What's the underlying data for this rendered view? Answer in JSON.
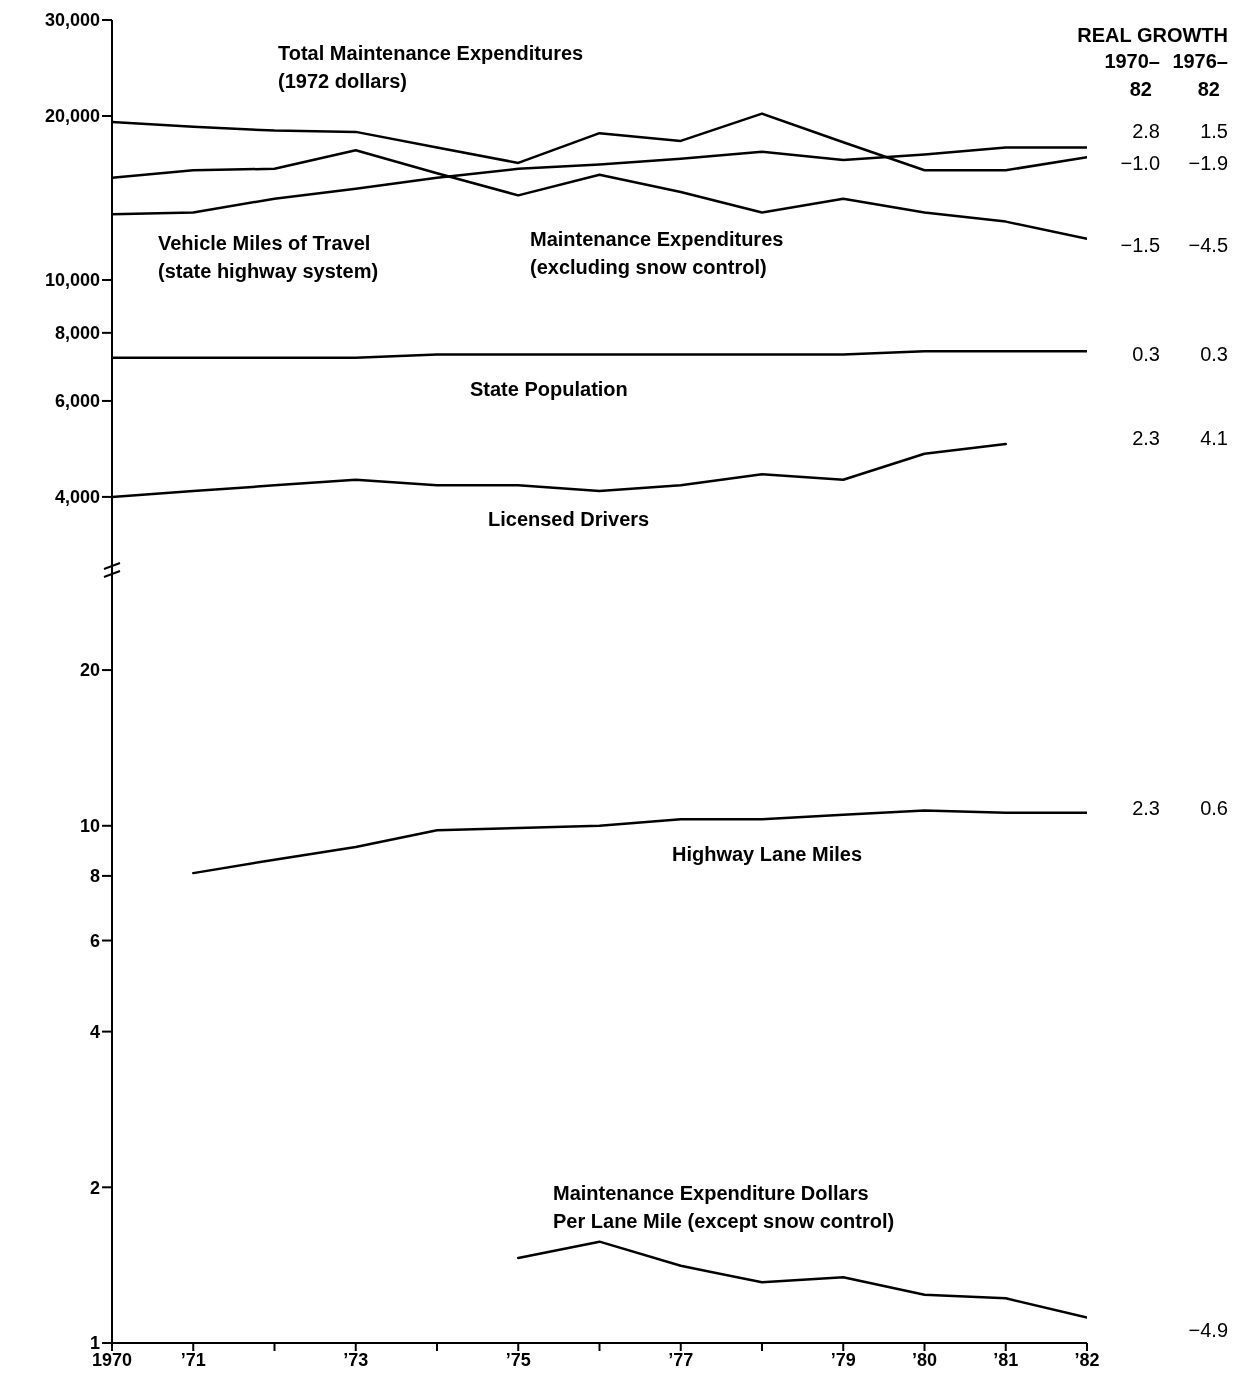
{
  "chart_data": [
    {
      "type": "line",
      "x": [
        1970,
        1971,
        1972,
        1973,
        1974,
        1975,
        1976,
        1977,
        1978,
        1979,
        1980,
        1981,
        1982
      ],
      "log": "y",
      "tick_labels": "y",
      "legend": false,
      "xlim": [
        1970,
        1982
      ],
      "ylim": [
        3000,
        30000
      ],
      "yticks": [
        {
          "value": 4000,
          "label": "4,000"
        },
        {
          "value": 6000,
          "label": "6,000"
        },
        {
          "value": 8000,
          "label": "8,000"
        },
        {
          "value": 10000,
          "label": "10,000"
        },
        {
          "value": 20000,
          "label": "20,000"
        },
        {
          "value": 30000,
          "label": "30,000"
        }
      ],
      "series": [
        {
          "name": "Total Maintenance Expenditures\n(1972 dollars)",
          "color": "#000000",
          "values": [
            19500,
            19100,
            18800,
            18700,
            17500,
            16400,
            18600,
            18000,
            20200,
            17900,
            15900,
            15900,
            16800
          ]
        },
        {
          "name": "Vehicle Miles of Travel\n(state highway system)",
          "color": "#000000",
          "values": [
            13200,
            13300,
            14100,
            14700,
            15400,
            16000,
            16300,
            16700,
            17200,
            16600,
            17000,
            17500,
            17500
          ]
        },
        {
          "name": "Maintenance Expenditures\n(excluding snow control)",
          "color": "#000000",
          "values": [
            15400,
            15900,
            16000,
            17300,
            15700,
            14300,
            15600,
            14500,
            13300,
            14100,
            13300,
            12800,
            11900
          ]
        },
        {
          "name": "State Population",
          "color": "#000000",
          "values": [
            7200,
            7200,
            7200,
            7200,
            7300,
            7300,
            7300,
            7300,
            7300,
            7300,
            7400,
            7400,
            7400
          ]
        },
        {
          "name": "Licensed Drivers",
          "color": "#000000",
          "values": [
            4000,
            4100,
            4200,
            4300,
            4200,
            4200,
            4100,
            4200,
            4400,
            4300,
            4800,
            5000,
            null
          ]
        }
      ],
      "annotations": [
        "REAL GROWTH",
        "1970–82",
        "1976–82",
        "2.8",
        "1.5",
        "−1.0",
        "−1.9",
        "−1.5",
        "−4.5",
        "0.3",
        "0.3",
        "2.3",
        "4.1"
      ]
    },
    {
      "type": "line",
      "x": [
        1971,
        1972,
        1973,
        1974,
        1975,
        1976,
        1977,
        1978,
        1979,
        1980,
        1981,
        1982
      ],
      "log": "y",
      "legend": false,
      "xlim": [
        1970,
        1982
      ],
      "xticks": [
        1970,
        {
          "value": 1971,
          "label": "’71"
        },
        {
          "value": 1972,
          "label": null
        },
        {
          "value": 1973,
          "label": "’73"
        },
        {
          "value": 1974,
          "label": null
        },
        {
          "value": 1975,
          "label": "’75"
        },
        {
          "value": 1976,
          "label": null
        },
        {
          "value": 1977,
          "label": "’77"
        },
        {
          "value": 1978,
          "label": null
        },
        {
          "value": 1979,
          "label": "’79"
        },
        {
          "value": 1980,
          "label": "’80"
        },
        {
          "value": 1981,
          "label": "’81"
        },
        {
          "value": 1982,
          "label": "’82"
        }
      ],
      "ylim": [
        1,
        30
      ],
      "yticks": [
        1,
        2,
        4,
        6,
        8,
        10,
        20
      ],
      "series": [
        {
          "name": "Highway Lane Miles",
          "color": "#000000",
          "values": [
            8.1,
            8.6,
            9.1,
            9.8,
            9.9,
            10.0,
            10.3,
            10.3,
            10.5,
            10.7,
            10.6,
            10.6
          ]
        },
        {
          "name": "Maintenance Expenditure Dollars\nPer Lane Mile (except snow control)",
          "color": "#000000",
          "values": [
            null,
            null,
            null,
            null,
            1.46,
            1.57,
            1.41,
            1.31,
            1.34,
            1.24,
            1.22,
            1.12
          ]
        }
      ],
      "annotations": [
        "2.3",
        "0.6",
        "−4.9"
      ]
    }
  ]
}
